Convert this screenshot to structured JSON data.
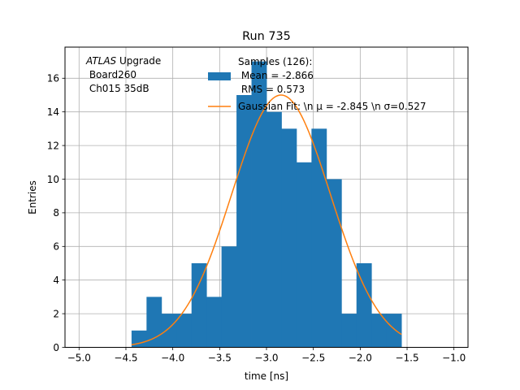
{
  "chart_data": {
    "type": "bar",
    "title": "Run 735",
    "xlabel": "time [ns]",
    "ylabel": "Entries",
    "xlim": [
      -5.15,
      -0.85
    ],
    "ylim": [
      0,
      17.85
    ],
    "grid": true,
    "xticks": [
      -5.0,
      -4.5,
      -4.0,
      -3.5,
      -3.0,
      -2.5,
      -2.0,
      -1.5,
      -1.0
    ],
    "xtick_labels": [
      "−5.0",
      "−4.5",
      "−4.0",
      "−3.5",
      "−3.0",
      "−2.5",
      "−2.0",
      "−1.5",
      "−1.0"
    ],
    "yticks": [
      0,
      2,
      4,
      6,
      8,
      10,
      12,
      14,
      16
    ],
    "ytick_labels": [
      "0",
      "2",
      "4",
      "6",
      "8",
      "10",
      "12",
      "14",
      "16"
    ],
    "histogram": {
      "bin_edges": [
        -4.44,
        -4.28,
        -4.12,
        -3.96,
        -3.8,
        -3.64,
        -3.48,
        -3.32,
        -3.16,
        -3.0,
        -2.84,
        -2.68,
        -2.52,
        -2.36,
        -2.2,
        -2.04,
        -1.88,
        -1.72,
        -1.56
      ],
      "counts": [
        1,
        3,
        2,
        2,
        5,
        3,
        6,
        15,
        17,
        14,
        13,
        11,
        13,
        10,
        2,
        5,
        2,
        2
      ],
      "color": "#1f77b4"
    },
    "fit": {
      "type": "gaussian",
      "amplitude": 15.0,
      "mu": -2.845,
      "sigma": 0.527,
      "x_range": [
        -4.44,
        -1.56
      ],
      "color": "#ff7f0e"
    },
    "annotation": {
      "line1_italic": "ATLAS",
      "line1_rest": " Upgrade",
      "line2": " Board260",
      "line3": " Ch015 35dB"
    },
    "legend": {
      "location": "top-center",
      "samples_lines": [
        "Samples (126):",
        " Mean = -2.866",
        " RMS = 0.573"
      ],
      "fit_label": "Gaussian Fit: \\n μ = -2.845 \\n σ=0.527"
    }
  }
}
